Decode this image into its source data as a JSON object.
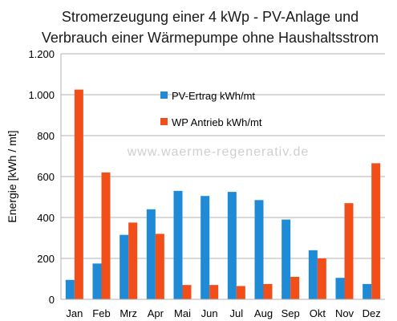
{
  "chart_data": {
    "type": "bar",
    "title_line1": "Stromerzeugung einer 4 kWp - PV-Anlage und",
    "title_line2": "Verbrauch einer Wärmepumpe ohne Haushaltsstrom",
    "xlabel": "",
    "ylabel": "Energie [kWh / mt]",
    "categories": [
      "Jan",
      "Feb",
      "Mrz",
      "Apr",
      "Mai",
      "Jun",
      "Jul",
      "Aug",
      "Sep",
      "Okt",
      "Nov",
      "Dez"
    ],
    "ylim": [
      0,
      1200
    ],
    "yticks": [
      0,
      200,
      400,
      600,
      800,
      1000,
      1200
    ],
    "ytick_labels": [
      "0",
      "200",
      "400",
      "600",
      "800",
      "1.000",
      "1.200"
    ],
    "grid": true,
    "legend_position": "upper-center",
    "watermark": "www.waerme-regenerativ.de",
    "series": [
      {
        "name": "PV-Ertrag kWh/mt",
        "color": "#1f8ad6",
        "values": [
          95,
          175,
          315,
          440,
          530,
          505,
          525,
          485,
          390,
          240,
          105,
          75
        ]
      },
      {
        "name": "WP Antrieb kWh/mt",
        "color": "#f24e1a",
        "values": [
          1025,
          620,
          375,
          320,
          70,
          70,
          65,
          75,
          110,
          200,
          470,
          665
        ]
      }
    ]
  }
}
